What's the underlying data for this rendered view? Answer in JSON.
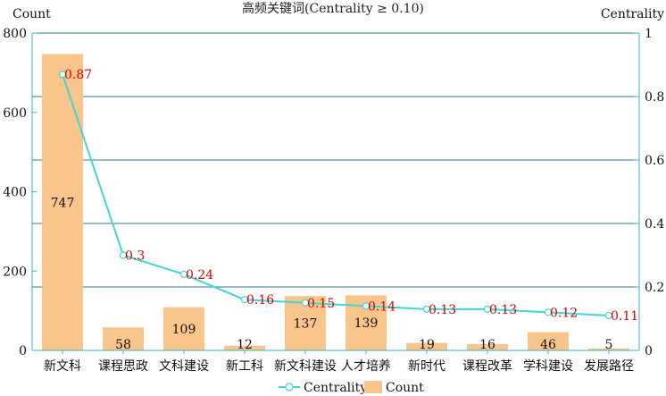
{
  "chart_data": {
    "type": "bar+line",
    "title": "高频关键词(Centrality ≥ 0.10)",
    "categories": [
      "新文科",
      "课程思政",
      "文科建设",
      "新工科",
      "新文科建设",
      "人才培养",
      "新时代",
      "课程改革",
      "学科建设",
      "发展路径"
    ],
    "series": [
      {
        "name": "Count",
        "type": "bar",
        "axis": "left",
        "color": "#fac58a",
        "values": [
          747,
          58,
          109,
          12,
          137,
          139,
          19,
          16,
          46,
          5
        ]
      },
      {
        "name": "Centrality",
        "type": "line",
        "axis": "right",
        "color": "#3dd8d8",
        "values": [
          0.87,
          0.3,
          0.24,
          0.16,
          0.15,
          0.14,
          0.13,
          0.13,
          0.12,
          0.11
        ]
      }
    ],
    "left_axis": {
      "label": "Count",
      "ylim": [
        0,
        800
      ],
      "ticks": [
        0,
        200,
        400,
        600,
        800
      ]
    },
    "right_axis": {
      "label": "Centrality",
      "ylim": [
        0,
        1
      ],
      "ticks": [
        0,
        0.2,
        0.4,
        0.6,
        0.8,
        1
      ]
    },
    "grid": "horizontal (right axis)",
    "legend": "bottom-center",
    "label_color": "#e00000",
    "grid_color": "#2f7a8a",
    "axis_color": "#2fb8c8"
  }
}
